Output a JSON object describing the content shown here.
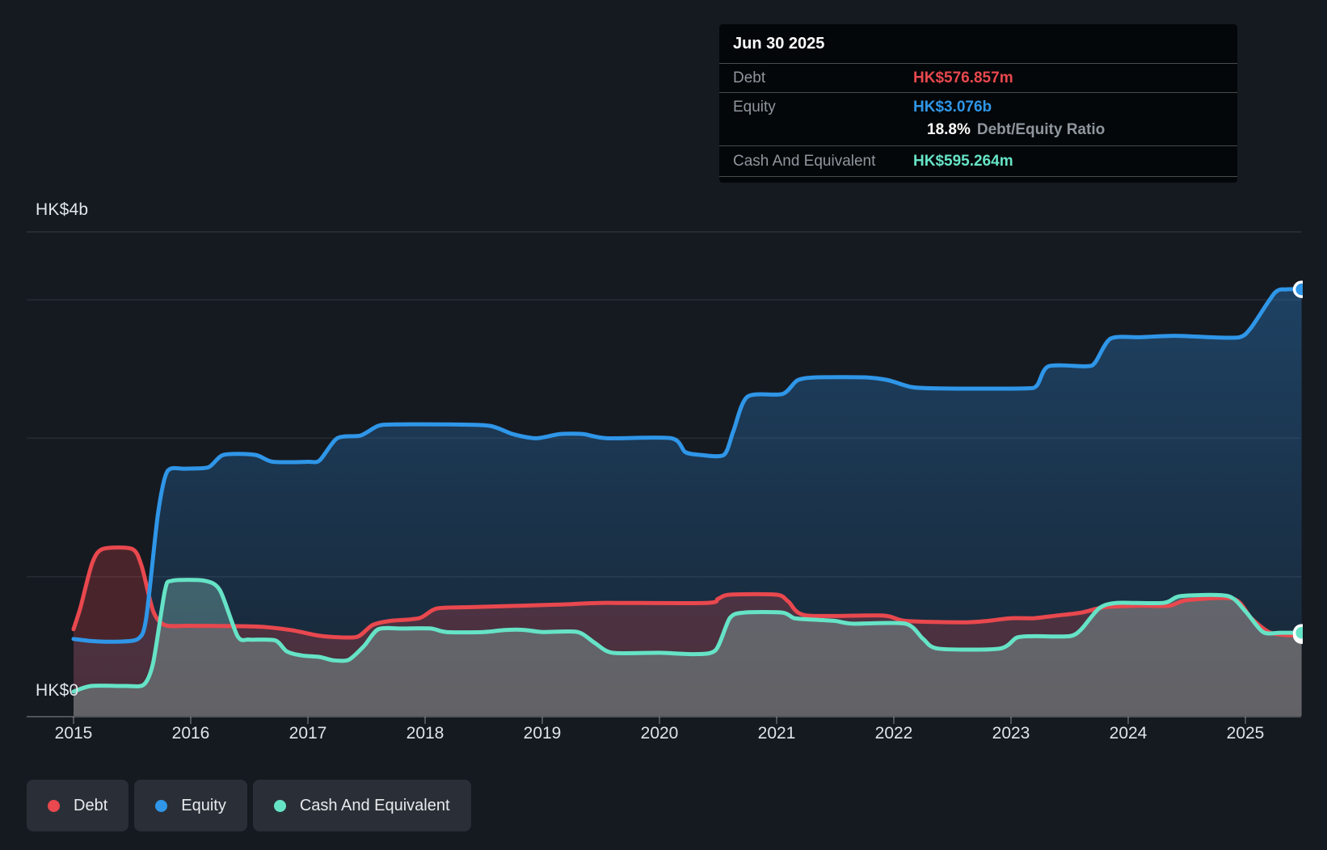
{
  "tooltip": {
    "date": "Jun 30 2025",
    "rows": [
      {
        "label": "Debt",
        "value": "HK$576.857m",
        "color": "#e8484e"
      },
      {
        "label": "Equity",
        "value": "HK$3.076b",
        "color": "#2f96e8"
      },
      {
        "label": "Cash And Equivalent",
        "value": "HK$595.264m",
        "color": "#66e3c6"
      }
    ],
    "ratio_value": "18.8%",
    "ratio_label": "Debt/Equity Ratio"
  },
  "legend": [
    {
      "label": "Debt",
      "color": "#e8484e"
    },
    {
      "label": "Equity",
      "color": "#2f96e8"
    },
    {
      "label": "Cash And Equivalent",
      "color": "#66e3c6"
    }
  ],
  "y_axis": {
    "top_label": "HK$4b",
    "bottom_label": "HK$0"
  },
  "chart_data": {
    "type": "area",
    "title": "",
    "xlabel": "",
    "ylabel": "HK$ (billions)",
    "x_ticks": [
      2015,
      2016,
      2017,
      2018,
      2019,
      2020,
      2021,
      2022,
      2023,
      2024,
      2025
    ],
    "xlim": [
      2014.6,
      2025.5
    ],
    "ylim": [
      0,
      3.5
    ],
    "grid_values": [
      1,
      2,
      3
    ],
    "legend_position": "bottom-left",
    "x_unit": "year",
    "y_unit": "HK$ billions",
    "end_date": "Jun 30 2025",
    "series": [
      {
        "name": "Debt",
        "color": "#e8484e",
        "fill": "rgba(226,68,74,0.26)",
        "end_value_b": 0.577,
        "points": [
          [
            2015.0,
            0.62
          ],
          [
            2015.06,
            0.78
          ],
          [
            2015.16,
            1.1
          ],
          [
            2015.25,
            1.2
          ],
          [
            2015.5,
            1.2
          ],
          [
            2015.58,
            1.08
          ],
          [
            2015.68,
            0.75
          ],
          [
            2015.78,
            0.65
          ],
          [
            2016.0,
            0.645
          ],
          [
            2016.55,
            0.64
          ],
          [
            2016.85,
            0.615
          ],
          [
            2017.05,
            0.58
          ],
          [
            2017.2,
            0.565
          ],
          [
            2017.42,
            0.565
          ],
          [
            2017.55,
            0.65
          ],
          [
            2017.7,
            0.68
          ],
          [
            2017.95,
            0.7
          ],
          [
            2018.1,
            0.77
          ],
          [
            2018.4,
            0.78
          ],
          [
            2018.8,
            0.79
          ],
          [
            2019.2,
            0.8
          ],
          [
            2019.5,
            0.81
          ],
          [
            2020.4,
            0.81
          ],
          [
            2020.5,
            0.84
          ],
          [
            2020.6,
            0.87
          ],
          [
            2021.0,
            0.87
          ],
          [
            2021.1,
            0.82
          ],
          [
            2021.25,
            0.72
          ],
          [
            2021.9,
            0.72
          ],
          [
            2022.1,
            0.68
          ],
          [
            2022.6,
            0.67
          ],
          [
            2022.8,
            0.68
          ],
          [
            2023.0,
            0.7
          ],
          [
            2023.2,
            0.7
          ],
          [
            2023.4,
            0.72
          ],
          [
            2023.6,
            0.74
          ],
          [
            2023.8,
            0.78
          ],
          [
            2024.1,
            0.79
          ],
          [
            2024.35,
            0.79
          ],
          [
            2024.5,
            0.83
          ],
          [
            2024.9,
            0.84
          ],
          [
            2025.05,
            0.7
          ],
          [
            2025.2,
            0.6
          ],
          [
            2025.35,
            0.577
          ],
          [
            2025.48,
            0.577
          ]
        ]
      },
      {
        "name": "Equity",
        "color": "#2f96e8",
        "fill": "gradient-blue",
        "end_value_b": 3.076,
        "points": [
          [
            2015.0,
            0.55
          ],
          [
            2015.15,
            0.535
          ],
          [
            2015.35,
            0.53
          ],
          [
            2015.55,
            0.55
          ],
          [
            2015.62,
            0.7
          ],
          [
            2015.72,
            1.45
          ],
          [
            2015.8,
            1.76
          ],
          [
            2015.95,
            1.78
          ],
          [
            2016.15,
            1.79
          ],
          [
            2016.28,
            1.88
          ],
          [
            2016.55,
            1.88
          ],
          [
            2016.7,
            1.83
          ],
          [
            2017.0,
            1.83
          ],
          [
            2017.1,
            1.84
          ],
          [
            2017.25,
            2.0
          ],
          [
            2017.45,
            2.02
          ],
          [
            2017.6,
            2.09
          ],
          [
            2017.75,
            2.1
          ],
          [
            2018.2,
            2.1
          ],
          [
            2018.55,
            2.09
          ],
          [
            2018.75,
            2.03
          ],
          [
            2018.95,
            2.0
          ],
          [
            2019.15,
            2.03
          ],
          [
            2019.35,
            2.03
          ],
          [
            2019.55,
            2.0
          ],
          [
            2020.1,
            2.0
          ],
          [
            2020.22,
            1.9
          ],
          [
            2020.35,
            1.88
          ],
          [
            2020.55,
            1.88
          ],
          [
            2020.63,
            2.05
          ],
          [
            2020.75,
            2.3
          ],
          [
            2021.05,
            2.32
          ],
          [
            2021.18,
            2.42
          ],
          [
            2021.35,
            2.44
          ],
          [
            2021.75,
            2.44
          ],
          [
            2021.95,
            2.42
          ],
          [
            2022.15,
            2.37
          ],
          [
            2022.4,
            2.36
          ],
          [
            2023.1,
            2.36
          ],
          [
            2023.22,
            2.38
          ],
          [
            2023.32,
            2.52
          ],
          [
            2023.65,
            2.52
          ],
          [
            2023.72,
            2.55
          ],
          [
            2023.85,
            2.72
          ],
          [
            2024.1,
            2.73
          ],
          [
            2024.4,
            2.74
          ],
          [
            2024.7,
            2.73
          ],
          [
            2024.95,
            2.73
          ],
          [
            2025.05,
            2.8
          ],
          [
            2025.25,
            3.05
          ],
          [
            2025.35,
            3.076
          ],
          [
            2025.48,
            3.076
          ]
        ]
      },
      {
        "name": "Cash And Equivalent",
        "color": "#66e3c6",
        "fill": "rgba(151,219,205,0.30)",
        "end_value_b": 0.595,
        "points": [
          [
            2015.0,
            0.17
          ],
          [
            2015.15,
            0.21
          ],
          [
            2015.45,
            0.21
          ],
          [
            2015.6,
            0.22
          ],
          [
            2015.68,
            0.38
          ],
          [
            2015.78,
            0.9
          ],
          [
            2015.84,
            0.97
          ],
          [
            2016.12,
            0.97
          ],
          [
            2016.25,
            0.9
          ],
          [
            2016.4,
            0.57
          ],
          [
            2016.5,
            0.545
          ],
          [
            2016.72,
            0.54
          ],
          [
            2016.82,
            0.46
          ],
          [
            2016.95,
            0.43
          ],
          [
            2017.1,
            0.42
          ],
          [
            2017.22,
            0.395
          ],
          [
            2017.35,
            0.4
          ],
          [
            2017.48,
            0.5
          ],
          [
            2017.6,
            0.62
          ],
          [
            2017.8,
            0.625
          ],
          [
            2018.05,
            0.625
          ],
          [
            2018.18,
            0.6
          ],
          [
            2018.5,
            0.6
          ],
          [
            2018.68,
            0.615
          ],
          [
            2018.85,
            0.615
          ],
          [
            2019.0,
            0.6
          ],
          [
            2019.3,
            0.6
          ],
          [
            2019.45,
            0.52
          ],
          [
            2019.6,
            0.45
          ],
          [
            2020.0,
            0.45
          ],
          [
            2020.3,
            0.44
          ],
          [
            2020.48,
            0.47
          ],
          [
            2020.6,
            0.7
          ],
          [
            2020.72,
            0.74
          ],
          [
            2021.05,
            0.74
          ],
          [
            2021.15,
            0.7
          ],
          [
            2021.3,
            0.69
          ],
          [
            2021.5,
            0.68
          ],
          [
            2021.65,
            0.66
          ],
          [
            2022.1,
            0.66
          ],
          [
            2022.25,
            0.55
          ],
          [
            2022.38,
            0.48
          ],
          [
            2022.9,
            0.48
          ],
          [
            2023.05,
            0.56
          ],
          [
            2023.2,
            0.57
          ],
          [
            2023.5,
            0.57
          ],
          [
            2023.6,
            0.62
          ],
          [
            2023.75,
            0.77
          ],
          [
            2023.9,
            0.81
          ],
          [
            2024.3,
            0.81
          ],
          [
            2024.45,
            0.86
          ],
          [
            2024.85,
            0.86
          ],
          [
            2025.0,
            0.75
          ],
          [
            2025.15,
            0.6
          ],
          [
            2025.3,
            0.595
          ],
          [
            2025.48,
            0.595
          ]
        ]
      }
    ]
  }
}
